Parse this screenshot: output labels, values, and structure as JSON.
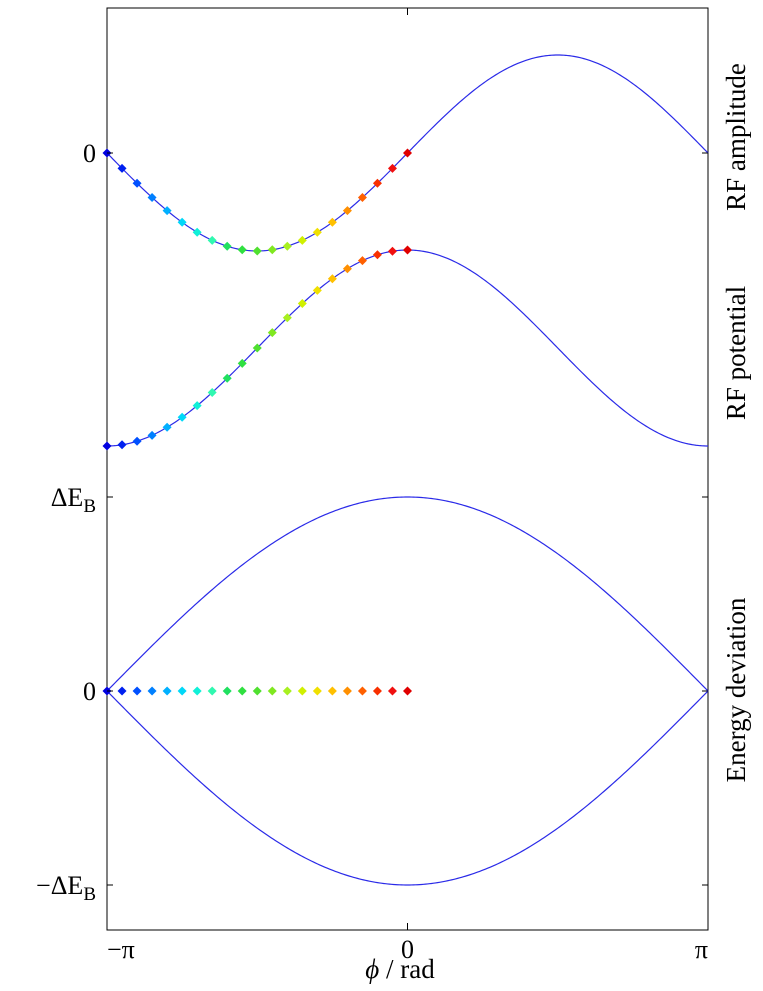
{
  "chart_data": {
    "type": "line",
    "colors": {
      "curve": "#2a2ae8",
      "frame": "#000000"
    },
    "x_axis": {
      "label_italic": "ϕ",
      "label_rest": " / rad",
      "range": [
        -3.14159,
        3.14159
      ],
      "ticks": [
        {
          "value": -3.14159,
          "label": "−π"
        },
        {
          "value": 0,
          "label": "0"
        },
        {
          "value": 3.14159,
          "label": "π"
        }
      ]
    },
    "panels": [
      {
        "id": "rf-amplitude",
        "label": "RF amplitude",
        "tick_labels": [
          {
            "value": 0,
            "label": "0"
          }
        ],
        "y_range": [
          -2.0,
          2.0
        ],
        "curve": "sin",
        "markers_x": [
          -3.1416,
          -2.9845,
          -2.8274,
          -2.6704,
          -2.5133,
          -2.3562,
          -2.1991,
          -2.042,
          -1.885,
          -1.7279,
          -1.5708,
          -1.4137,
          -1.2566,
          -1.0996,
          -0.9425,
          -0.7854,
          -0.6283,
          -0.4712,
          -0.3142,
          -0.1571,
          0.0
        ]
      },
      {
        "id": "rf-potential",
        "label": "RF potential",
        "tick_labels": [],
        "y_range": [
          -2.0,
          2.0
        ],
        "curve": "cos",
        "markers_x": [
          -3.1416,
          -2.9845,
          -2.8274,
          -2.6704,
          -2.5133,
          -2.3562,
          -2.1991,
          -2.042,
          -1.885,
          -1.7279,
          -1.5708,
          -1.4137,
          -1.2566,
          -1.0996,
          -0.9425,
          -0.7854,
          -0.6283,
          -0.4712,
          -0.3142,
          -0.1571,
          0.0
        ]
      },
      {
        "id": "energy-deviation",
        "label": "Energy deviation",
        "tick_labels": [
          {
            "value": 1,
            "label_main": "ΔE",
            "label_sub": "B"
          },
          {
            "value": 0,
            "label_main": "0",
            "label_sub": ""
          },
          {
            "value": -1,
            "label_main": "−ΔE",
            "label_sub": "B"
          }
        ],
        "y_range": [
          -1.0,
          1.0
        ],
        "curve": "separatrix",
        "markers_x": [
          -3.1416,
          -2.9845,
          -2.8274,
          -2.6704,
          -2.5133,
          -2.3562,
          -2.1991,
          -2.042,
          -1.885,
          -1.7279,
          -1.5708,
          -1.4137,
          -1.2566,
          -1.0996,
          -0.9425,
          -0.7854,
          -0.6283,
          -0.4712,
          -0.3142,
          -0.1571,
          0.0
        ],
        "markers_y": 0
      }
    ],
    "marker_colors": [
      "#0000e0",
      "#0020f0",
      "#0050ff",
      "#0080ff",
      "#00b0ff",
      "#00d8f8",
      "#10f0d8",
      "#30f8b0",
      "#20e060",
      "#30e040",
      "#50e030",
      "#80e820",
      "#a8f020",
      "#d0f000",
      "#f0e000",
      "#ffc000",
      "#ff9000",
      "#ff6000",
      "#f83000",
      "#f01010",
      "#e00000"
    ]
  }
}
